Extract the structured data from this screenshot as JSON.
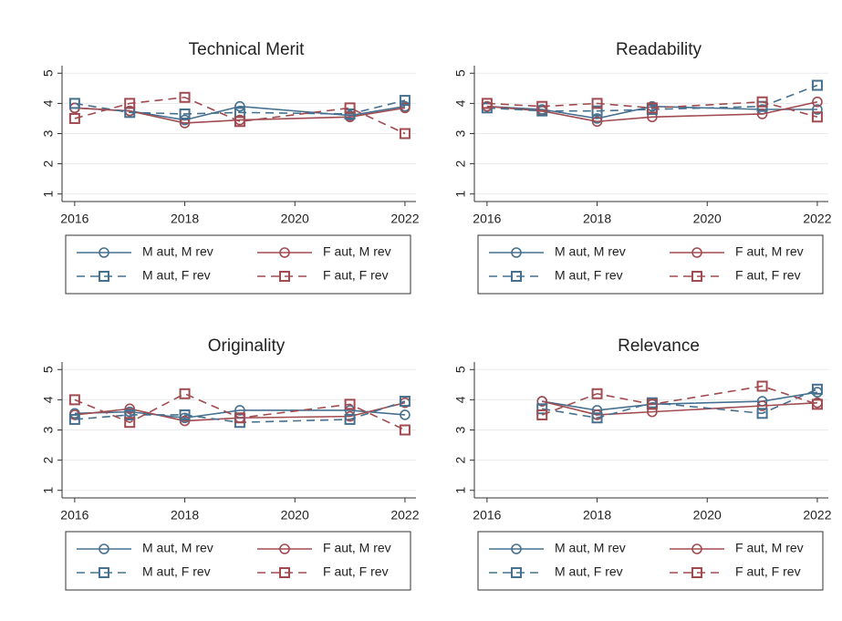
{
  "chart_data": [
    {
      "type": "line",
      "title": "Technical Merit",
      "x": [
        2016,
        2017,
        2018,
        2019,
        2021,
        2022
      ],
      "xlim": [
        2015.77,
        2022.2
      ],
      "xticks": [
        2016,
        2018,
        2020,
        2022
      ],
      "ylim": [
        0.75,
        5.25
      ],
      "yticks": [
        1,
        2,
        3,
        4,
        5
      ],
      "grid": true,
      "series": [
        {
          "name": "M aut, M rev",
          "color": "#46708f",
          "marker": "circle",
          "dashed": false,
          "values": [
            3.85,
            3.75,
            3.45,
            3.9,
            3.6,
            3.9
          ]
        },
        {
          "name": "F aut, M rev",
          "color": "#a04b50",
          "marker": "circle",
          "dashed": false,
          "values": [
            3.85,
            3.75,
            3.35,
            3.45,
            3.55,
            3.85
          ]
        },
        {
          "name": "M aut, F rev",
          "color": "#46708f",
          "marker": "square",
          "dashed": true,
          "values": [
            4.0,
            3.7,
            3.65,
            3.7,
            3.65,
            4.1
          ]
        },
        {
          "name": "F aut, F rev",
          "color": "#a04b50",
          "marker": "square",
          "dashed": true,
          "values": [
            3.5,
            4.0,
            4.2,
            3.4,
            3.85,
            3.0
          ]
        }
      ]
    },
    {
      "type": "line",
      "title": "Readability",
      "x": [
        2016,
        2017,
        2018,
        2019,
        2021,
        2022
      ],
      "xlim": [
        2015.77,
        2022.2
      ],
      "xticks": [
        2016,
        2018,
        2020,
        2022
      ],
      "ylim": [
        0.75,
        5.25
      ],
      "yticks": [
        1,
        2,
        3,
        4,
        5
      ],
      "grid": true,
      "series": [
        {
          "name": "M aut, M rev",
          "color": "#46708f",
          "marker": "circle",
          "dashed": false,
          "values": [
            3.9,
            3.8,
            3.5,
            3.9,
            3.8,
            3.8
          ]
        },
        {
          "name": "F aut, M rev",
          "color": "#a04b50",
          "marker": "circle",
          "dashed": false,
          "values": [
            3.9,
            3.75,
            3.4,
            3.55,
            3.65,
            4.05
          ]
        },
        {
          "name": "M aut, F rev",
          "color": "#46708f",
          "marker": "square",
          "dashed": true,
          "values": [
            3.85,
            3.75,
            3.75,
            3.8,
            3.9,
            4.6
          ]
        },
        {
          "name": "F aut, F rev",
          "color": "#a04b50",
          "marker": "square",
          "dashed": true,
          "values": [
            4.0,
            3.9,
            4.0,
            3.85,
            4.05,
            3.55
          ]
        }
      ]
    },
    {
      "type": "line",
      "title": "Originality",
      "x": [
        2016,
        2017,
        2018,
        2019,
        2021,
        2022
      ],
      "xlim": [
        2015.77,
        2022.2
      ],
      "xticks": [
        2016,
        2018,
        2020,
        2022
      ],
      "ylim": [
        0.75,
        5.25
      ],
      "yticks": [
        1,
        2,
        3,
        4,
        5
      ],
      "grid": true,
      "series": [
        {
          "name": "M aut, M rev",
          "color": "#46708f",
          "marker": "circle",
          "dashed": false,
          "values": [
            3.55,
            3.6,
            3.4,
            3.65,
            3.65,
            3.5
          ]
        },
        {
          "name": "F aut, M rev",
          "color": "#a04b50",
          "marker": "circle",
          "dashed": false,
          "values": [
            3.5,
            3.7,
            3.3,
            3.4,
            3.45,
            3.9
          ]
        },
        {
          "name": "M aut, F rev",
          "color": "#46708f",
          "marker": "square",
          "dashed": true,
          "values": [
            3.35,
            3.5,
            3.5,
            3.25,
            3.35,
            3.95
          ]
        },
        {
          "name": "F aut, F rev",
          "color": "#a04b50",
          "marker": "square",
          "dashed": true,
          "values": [
            4.0,
            3.25,
            4.2,
            3.4,
            3.85,
            3.0
          ]
        }
      ]
    },
    {
      "type": "line",
      "title": "Relevance",
      "x": [
        2016,
        2017,
        2018,
        2019,
        2021,
        2022
      ],
      "xlim": [
        2015.77,
        2022.2
      ],
      "xticks": [
        2016,
        2018,
        2020,
        2022
      ],
      "ylim": [
        0.75,
        5.25
      ],
      "yticks": [
        1,
        2,
        3,
        4,
        5
      ],
      "grid": true,
      "series": [
        {
          "name": "M aut, M rev",
          "color": "#46708f",
          "marker": "circle",
          "dashed": false,
          "values": [
            null,
            3.95,
            3.65,
            3.85,
            3.95,
            4.25
          ]
        },
        {
          "name": "F aut, M rev",
          "color": "#a04b50",
          "marker": "circle",
          "dashed": false,
          "values": [
            null,
            3.95,
            3.5,
            3.6,
            3.8,
            3.9
          ]
        },
        {
          "name": "M aut, F rev",
          "color": "#46708f",
          "marker": "square",
          "dashed": true,
          "values": [
            null,
            3.7,
            3.4,
            3.9,
            3.55,
            4.35
          ]
        },
        {
          "name": "F aut, F rev",
          "color": "#a04b50",
          "marker": "square",
          "dashed": true,
          "values": [
            null,
            3.5,
            4.2,
            3.85,
            4.45,
            3.85
          ]
        }
      ]
    }
  ]
}
